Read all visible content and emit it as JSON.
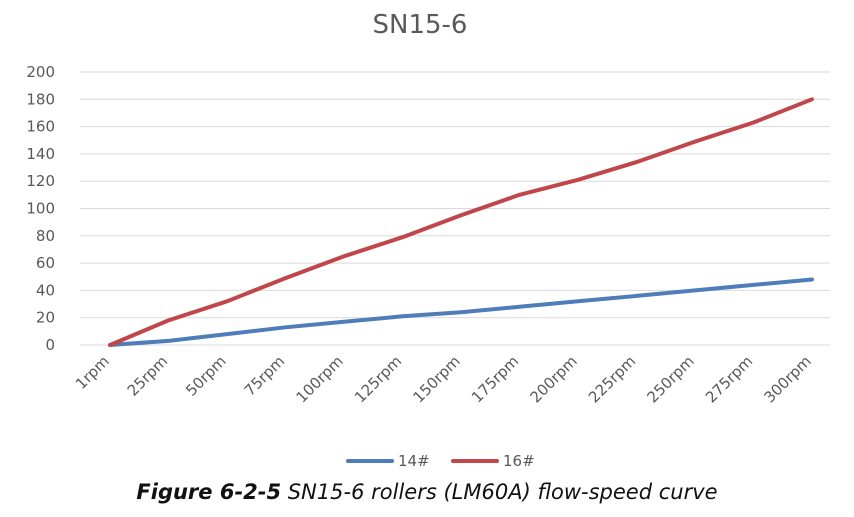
{
  "chart_data": {
    "type": "line",
    "title": "SN15-6",
    "xlabel": "",
    "ylabel": "",
    "categories": [
      "1rpm",
      "25rpm",
      "50rpm",
      "75rpm",
      "100rpm",
      "125rpm",
      "150rpm",
      "175rpm",
      "200rpm",
      "225rpm",
      "250rpm",
      "275rpm",
      "300rpm"
    ],
    "ylim": [
      0,
      200
    ],
    "yticks": [
      "0",
      "20",
      "40",
      "60",
      "80",
      "100",
      "120",
      "140",
      "160",
      "180",
      "200"
    ],
    "grid": true,
    "legend_position": "bottom",
    "series": [
      {
        "name": "14#",
        "color": "#4e7db9",
        "values": [
          0,
          3,
          8,
          13,
          17,
          21,
          24,
          28,
          32,
          36,
          40,
          44,
          48
        ]
      },
      {
        "name": "16#",
        "color": "#c0464a",
        "values": [
          0,
          18,
          32,
          49,
          65,
          79,
          95,
          110,
          121,
          134,
          149,
          163,
          180
        ]
      }
    ]
  },
  "caption": {
    "label": "Figure 6-2-5",
    "text": " SN15-6 rollers (LM60A) flow-speed curve"
  }
}
